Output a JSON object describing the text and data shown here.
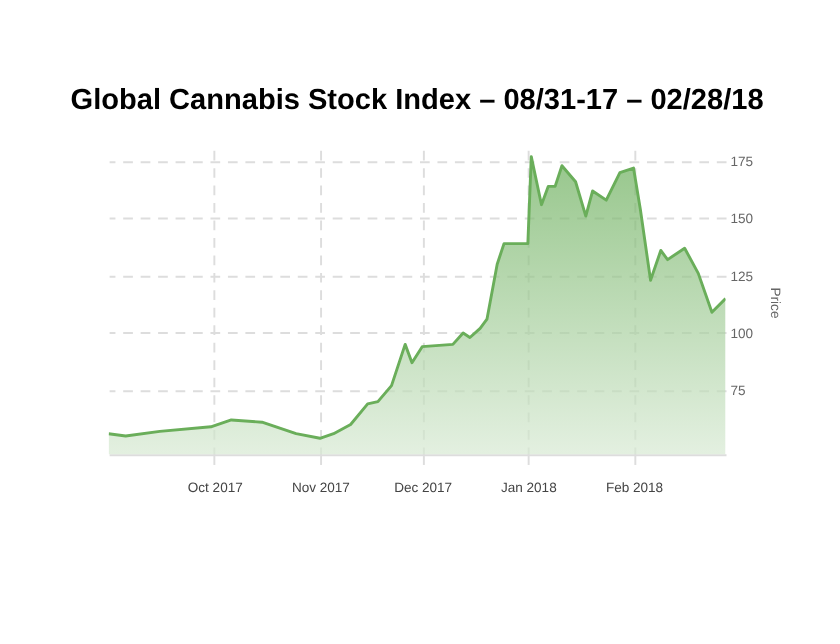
{
  "chart_data": {
    "type": "area",
    "title": "Global Cannabis Stock Index – 08/31-17 – 02/28/18",
    "ylabel": "Price",
    "x": [
      "2017-08-31",
      "2017-09-05",
      "2017-09-15",
      "2017-09-30",
      "2017-10-06",
      "2017-10-15",
      "2017-10-25",
      "2017-11-01",
      "2017-11-05",
      "2017-11-10",
      "2017-11-15",
      "2017-11-18",
      "2017-11-22",
      "2017-11-26",
      "2017-11-28",
      "2017-12-01",
      "2017-12-10",
      "2017-12-13",
      "2017-12-15",
      "2017-12-18",
      "2017-12-20",
      "2017-12-23",
      "2017-12-25",
      "2018-01-01",
      "2018-01-02",
      "2018-01-05",
      "2018-01-07",
      "2018-01-09",
      "2018-01-11",
      "2018-01-15",
      "2018-01-18",
      "2018-01-20",
      "2018-01-24",
      "2018-01-28",
      "2018-02-01",
      "2018-02-03",
      "2018-02-06",
      "2018-02-09",
      "2018-02-11",
      "2018-02-16",
      "2018-02-20",
      "2018-02-24",
      "2018-02-28"
    ],
    "series": [
      {
        "color": "#6aae5a",
        "values": [
          56,
          55,
          57,
          59,
          62,
          61,
          56,
          54,
          56,
          60,
          69,
          70,
          77,
          95,
          87,
          94,
          95,
          100,
          98,
          102,
          106,
          130,
          139,
          139,
          177,
          156,
          164,
          164,
          173,
          166,
          151,
          162,
          158,
          170,
          172,
          154,
          123,
          136,
          132,
          137,
          126,
          109,
          115
        ]
      }
    ],
    "xlim": [
      "2017-08-31",
      "2018-02-28"
    ],
    "xticks": [
      {
        "value": "2017-10-01",
        "label": "Oct 2017"
      },
      {
        "value": "2017-11-01",
        "label": "Nov 2017"
      },
      {
        "value": "2017-12-01",
        "label": "Dec 2017"
      },
      {
        "value": "2018-01-01",
        "label": "Jan 2018"
      },
      {
        "value": "2018-02-01",
        "label": "Feb 2018"
      }
    ],
    "ylim": [
      47,
      180
    ],
    "yticks": [
      75,
      100,
      125,
      150,
      175
    ],
    "grid": true,
    "line_style": "solid"
  }
}
